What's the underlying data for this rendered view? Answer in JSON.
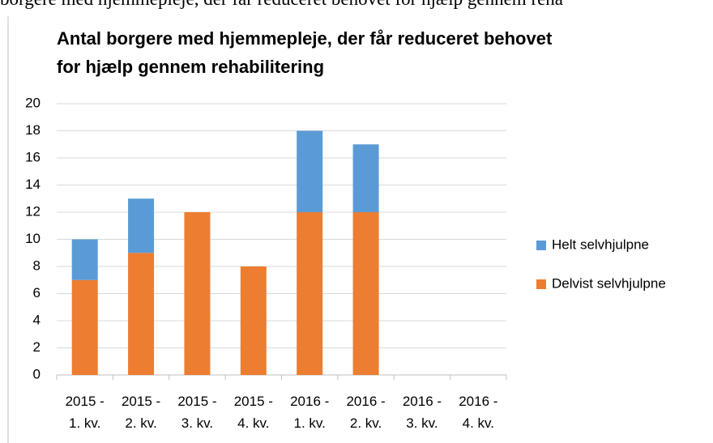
{
  "caption": "borgere med hjemmepleje, der får reduceret behovet for hjælp gennem reha",
  "chart_data": {
    "type": "stacked_bar",
    "title": "Antal borgere med hjemmepleje, der får reduceret behovet for hjælp gennem rehabilitering",
    "categories": [
      "2015 - 1. kv.",
      "2015 - 2. kv.",
      "2015 - 3. kv.",
      "2015 - 4. kv.",
      "2016 - 1. kv.",
      "2016 - 2. kv.",
      "2016 - 3. kv.",
      "2016 - 4. kv."
    ],
    "series": [
      {
        "name": "Delvist selvhjulpne",
        "color": "#ed7d31",
        "values": [
          7,
          9,
          12,
          8,
          12,
          12,
          null,
          null
        ]
      },
      {
        "name": "Helt selvhjulpne",
        "color": "#5b9bd5",
        "values": [
          3,
          4,
          0,
          0,
          6,
          5,
          null,
          null
        ]
      }
    ],
    "ylim": [
      0,
      20
    ],
    "yticks": [
      0,
      2,
      4,
      6,
      8,
      10,
      12,
      14,
      16,
      18,
      20
    ],
    "grid": true,
    "legend": "right"
  }
}
